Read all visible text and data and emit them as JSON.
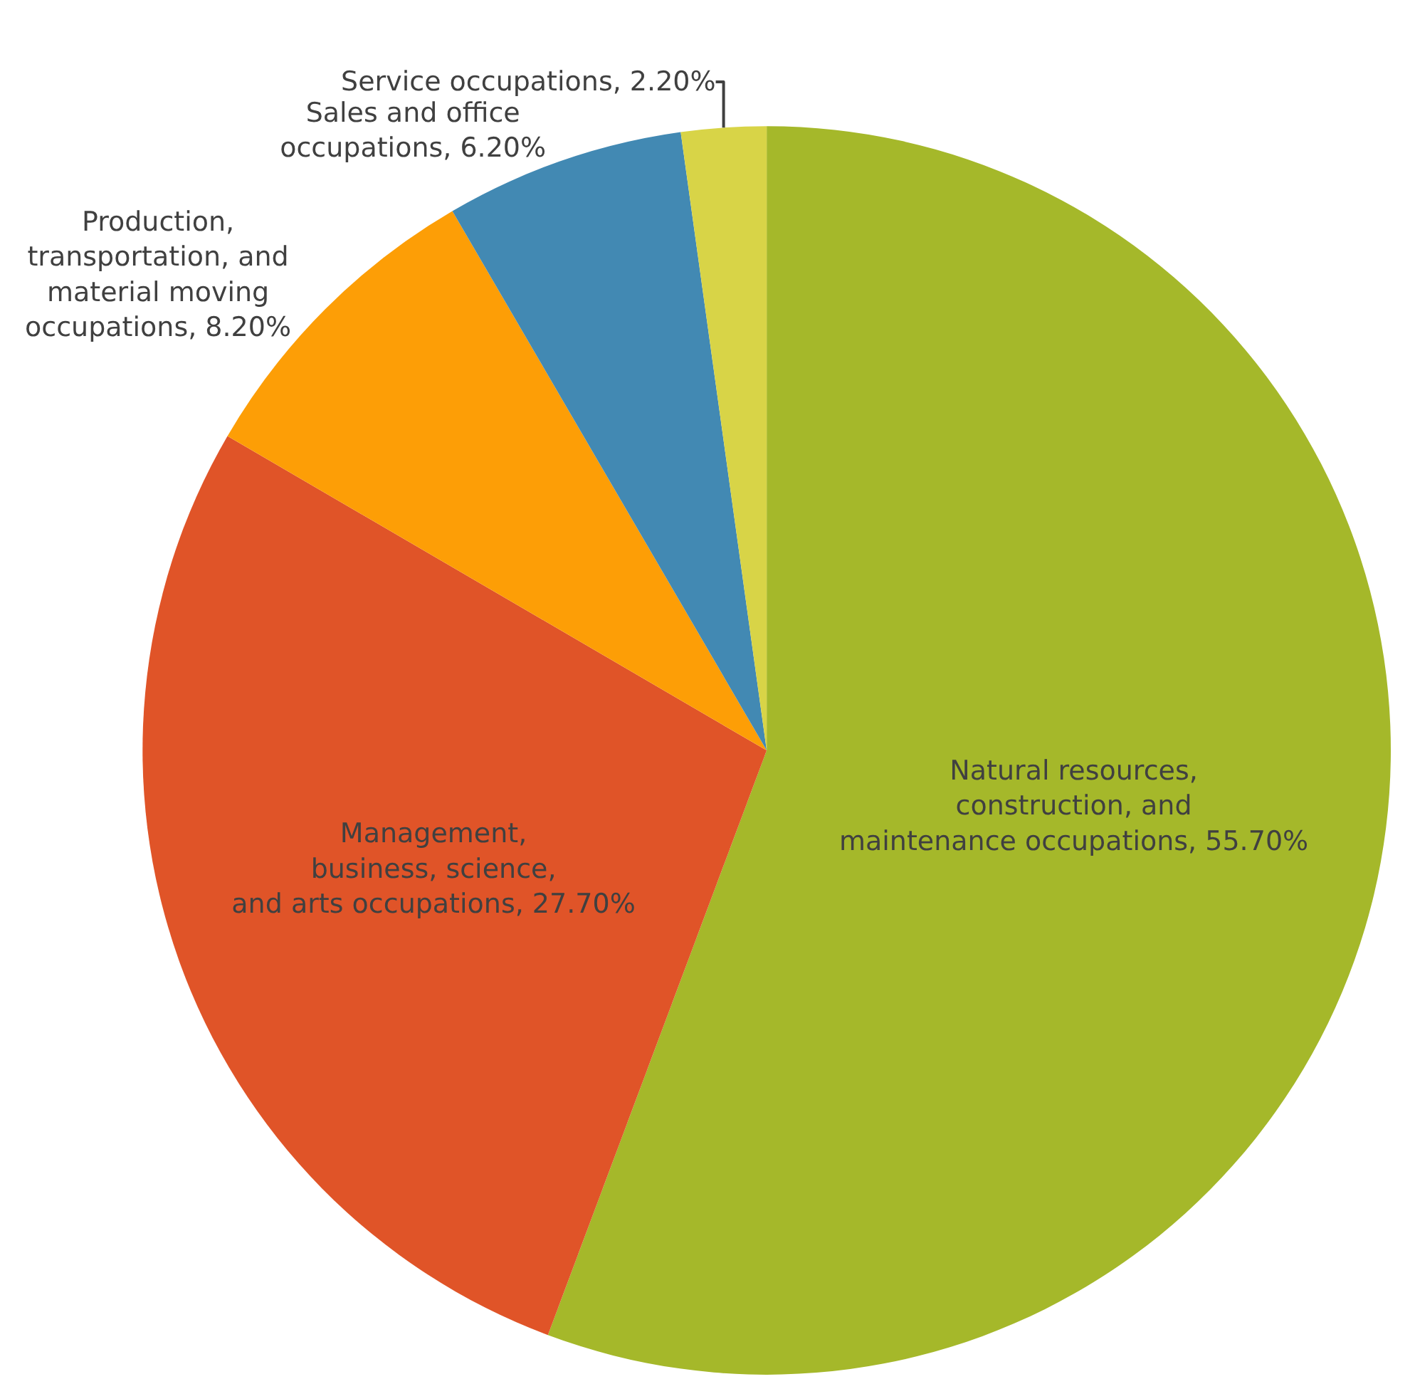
{
  "chart_data": {
    "type": "pie",
    "categories": [
      "Natural resources, construction, and maintenance occupations",
      "Management, business, science, and arts occupations",
      "Production, transportation, and material moving occupations",
      "Sales and office occupations",
      "Service occupations"
    ],
    "values": [
      55.7,
      27.7,
      8.2,
      6.2,
      2.2
    ],
    "value_labels": [
      "55.70%",
      "27.70%",
      "8.20%",
      "6.20%",
      "2.20%"
    ],
    "colors": [
      "#a5b82a",
      "#e05428",
      "#fd9e06",
      "#4289b3",
      "#d8d447"
    ]
  }
}
